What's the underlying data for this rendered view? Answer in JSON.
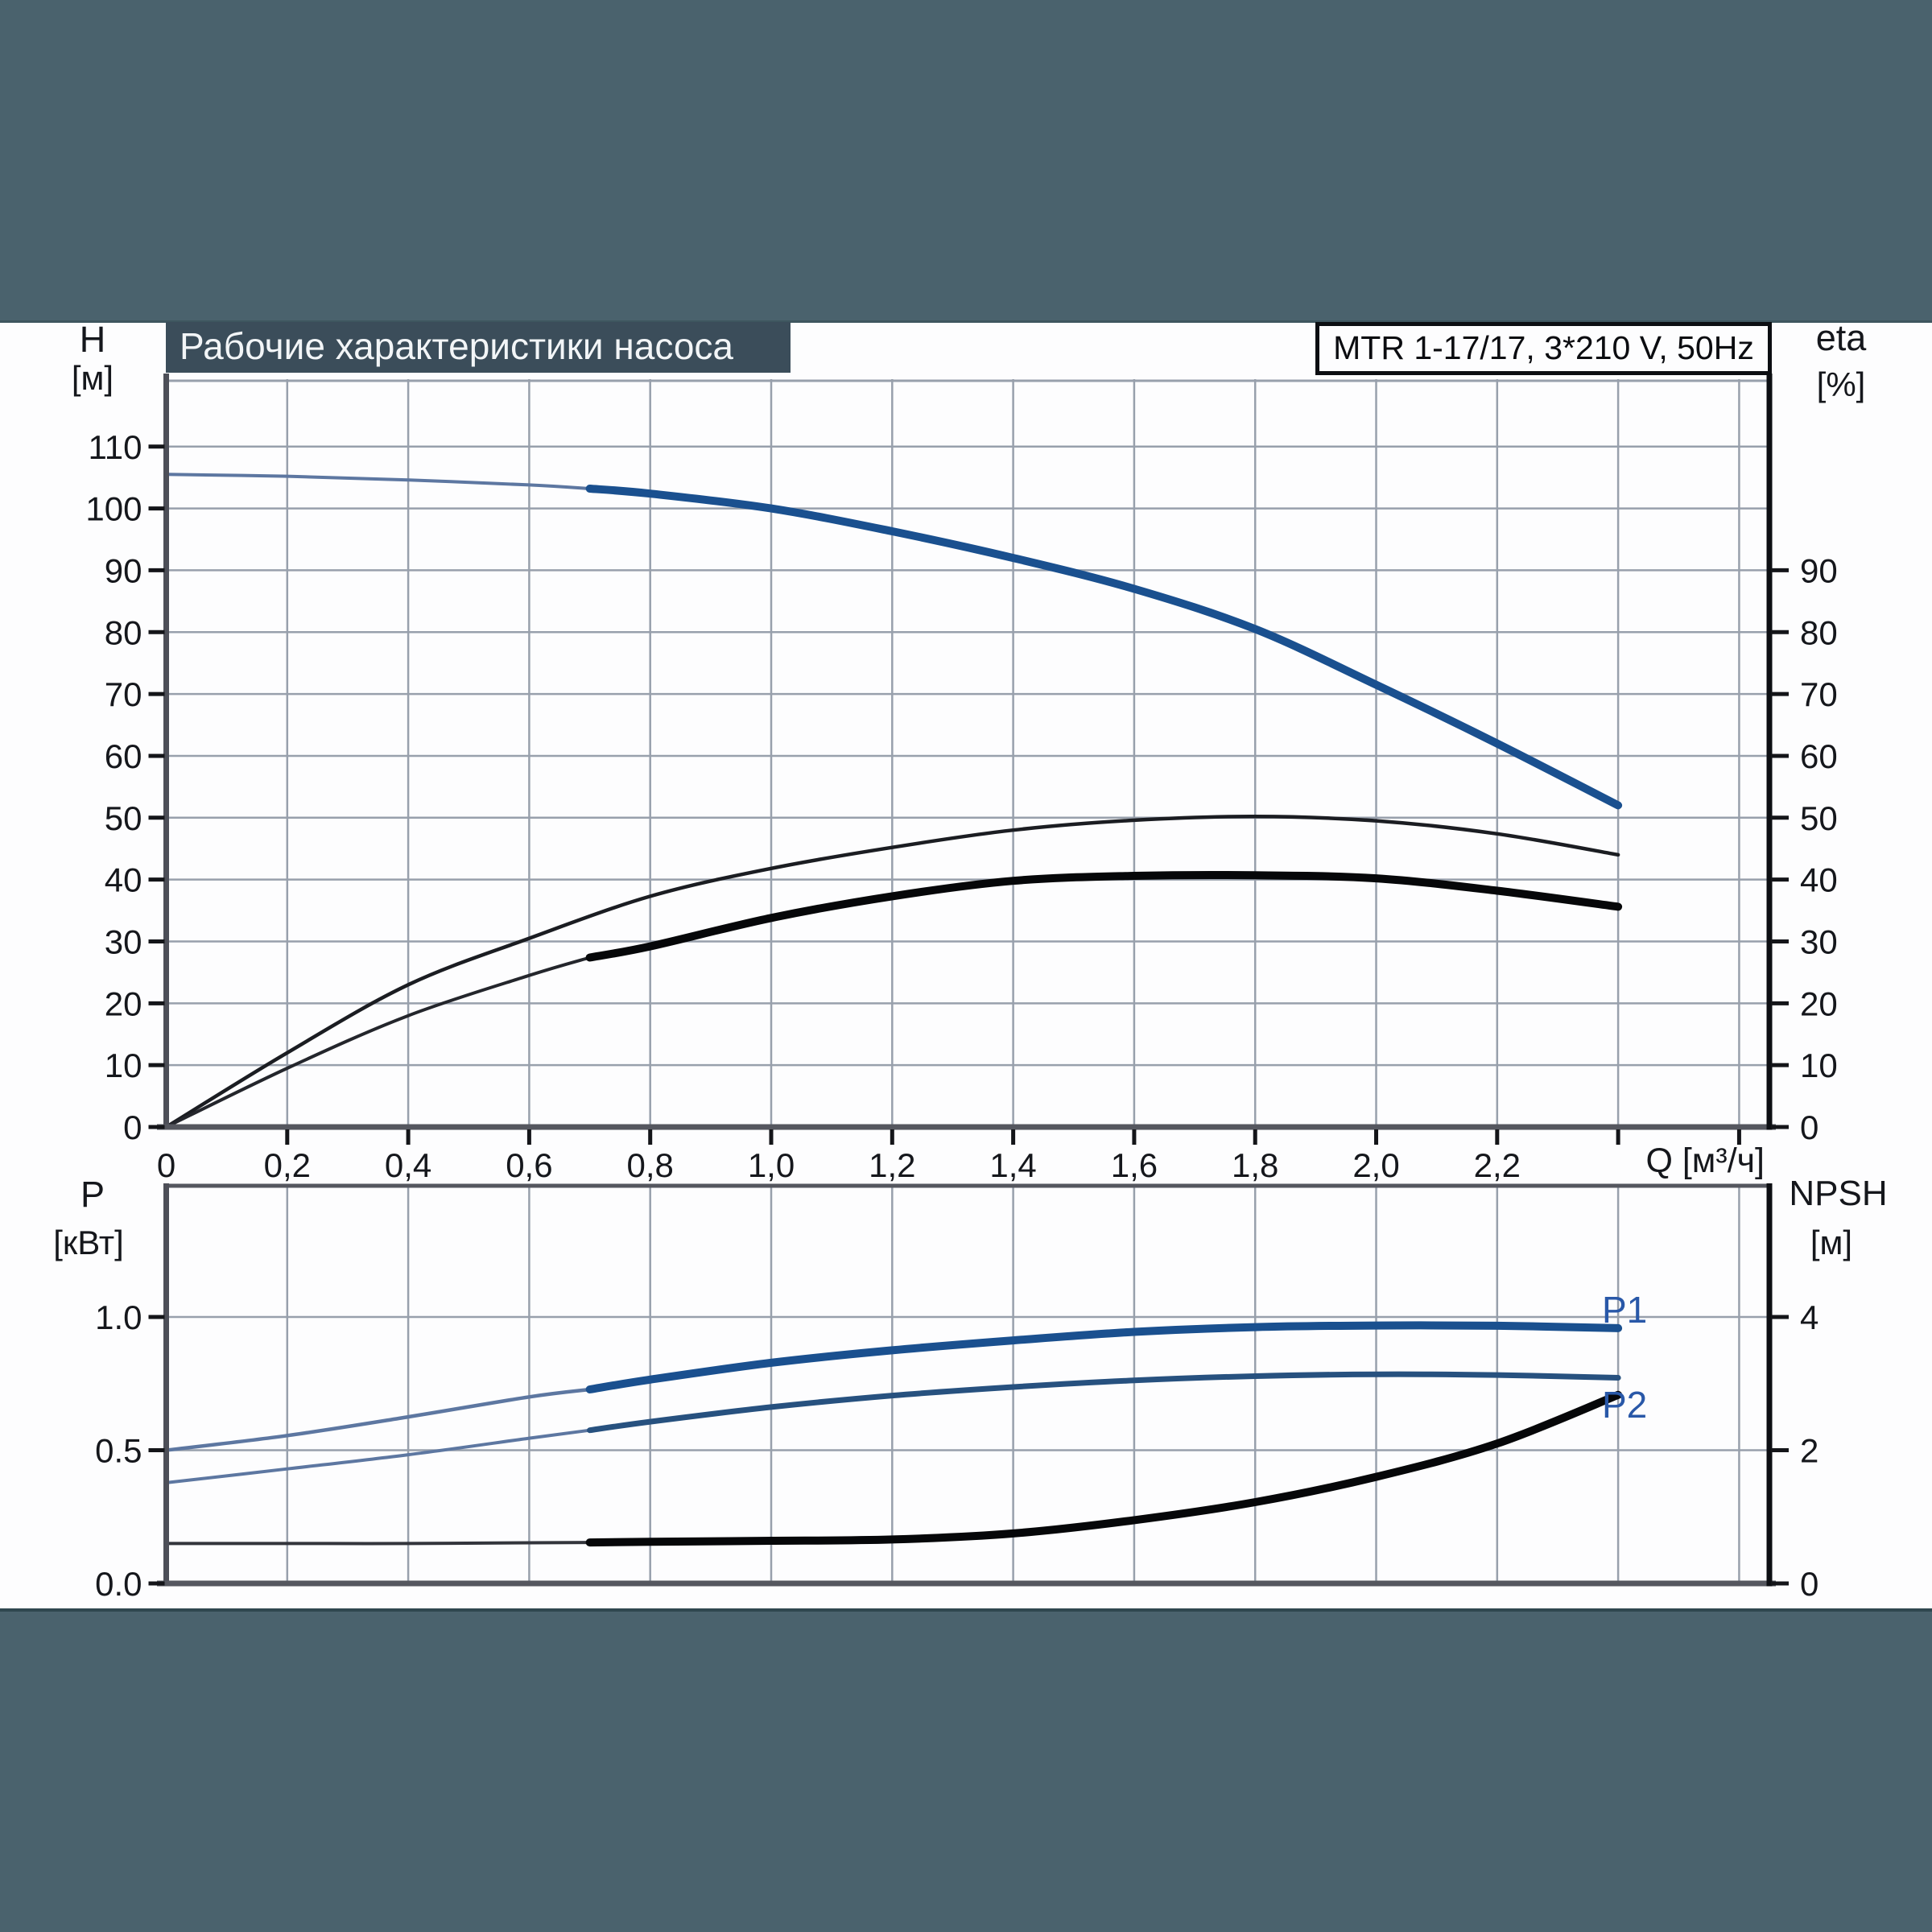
{
  "page": {
    "background_color": "#4a626d",
    "panel_color": "#fdfdfe",
    "title_bar_color": "#3b4d5a",
    "grid_color": "#98a0ac",
    "axis_gray_color": "#55575f",
    "frame_black_color": "#0d0f13",
    "accent_blue_bold": "#1a508f",
    "accent_blue_thin": "#5d77a1",
    "label_blue": "#2958a8"
  },
  "chart_data": [
    {
      "id": "pump-performance",
      "type": "line",
      "title": "Рабочие характеристики насоса",
      "legend_box": "MTR 1-17/17, 3*210 V, 50Hz",
      "grid": true,
      "x": {
        "label": "Q [м³/ч]",
        "min": 0,
        "max": 2.65,
        "grid_step": 0.2,
        "tick_values": [
          0,
          0.2,
          0.4,
          0.6,
          0.8,
          1.0,
          1.2,
          1.4,
          1.6,
          1.8,
          2.0,
          2.2
        ],
        "tick_labels": [
          "0",
          "0,2",
          "0,4",
          "0,6",
          "0,8",
          "1,0",
          "1,2",
          "1,4",
          "1,6",
          "1,8",
          "2,0",
          "2,2"
        ],
        "unlabeled_tick_values": [
          2.4,
          2.6
        ]
      },
      "y_left": {
        "label": "H",
        "unit": "[м]",
        "min": 0,
        "max": 120.9,
        "tick_values": [
          0,
          10,
          20,
          30,
          40,
          50,
          60,
          70,
          80,
          90,
          100,
          110
        ],
        "tick_labels": [
          "0",
          "10",
          "20",
          "30",
          "40",
          "50",
          "60",
          "70",
          "80",
          "90",
          "100",
          "110"
        ]
      },
      "y_right": {
        "label": "eta",
        "unit": "[%]",
        "min": 0,
        "max": 120.9,
        "tick_values": [
          0,
          10,
          20,
          30,
          40,
          50,
          60,
          70,
          80,
          90
        ],
        "tick_labels": [
          "0",
          "10",
          "20",
          "30",
          "40",
          "50",
          "60",
          "70",
          "80",
          "90"
        ]
      },
      "series": [
        {
          "name": "H",
          "axis": "left",
          "bold_from": 0.7,
          "color_bold": "#1a508f",
          "color_thin": "#5d77a1",
          "points": [
            [
              0,
              105.5
            ],
            [
              0.2,
              105.2
            ],
            [
              0.4,
              104.6
            ],
            [
              0.6,
              103.8
            ],
            [
              0.7,
              103.2
            ],
            [
              0.8,
              102.4
            ],
            [
              1.0,
              100.0
            ],
            [
              1.2,
              96.3
            ],
            [
              1.4,
              92.0
            ],
            [
              1.6,
              87.0
            ],
            [
              1.8,
              80.5
            ],
            [
              2.0,
              71.5
            ],
            [
              2.2,
              62.0
            ],
            [
              2.4,
              52.0
            ]
          ]
        },
        {
          "name": "eta-upper",
          "axis": "right",
          "bold_from": null,
          "color_bold": "#1b1d22",
          "color_thin": "#1b1d22",
          "points": [
            [
              0,
              0
            ],
            [
              0.2,
              12
            ],
            [
              0.4,
              23
            ],
            [
              0.6,
              30.5
            ],
            [
              0.8,
              37.3
            ],
            [
              1.0,
              41.8
            ],
            [
              1.2,
              45.2
            ],
            [
              1.4,
              48.0
            ],
            [
              1.6,
              49.6
            ],
            [
              1.8,
              50.2
            ],
            [
              2.0,
              49.5
            ],
            [
              2.2,
              47.4
            ],
            [
              2.4,
              44.0
            ]
          ]
        },
        {
          "name": "eta-lower",
          "axis": "right",
          "bold_from": 0.7,
          "color_bold": "#060709",
          "color_thin": "#24262c",
          "points": [
            [
              0,
              0
            ],
            [
              0.2,
              9.5
            ],
            [
              0.4,
              18
            ],
            [
              0.6,
              24.5
            ],
            [
              0.7,
              27.4
            ],
            [
              0.8,
              29.2
            ],
            [
              1.0,
              33.8
            ],
            [
              1.2,
              37.3
            ],
            [
              1.4,
              39.8
            ],
            [
              1.6,
              40.6
            ],
            [
              1.8,
              40.7
            ],
            [
              2.0,
              40.2
            ],
            [
              2.2,
              38.2
            ],
            [
              2.4,
              35.6
            ]
          ]
        }
      ]
    },
    {
      "id": "power-npsh",
      "type": "line",
      "grid": true,
      "x": {
        "min": 0,
        "max": 2.65,
        "grid_step": 0.2
      },
      "y_left": {
        "label": "P",
        "unit": "[кВт]",
        "min": 0,
        "max": 1.4924,
        "tick_values": [
          0,
          0.5,
          1.0
        ],
        "tick_labels": [
          "0.0",
          "0.5",
          "1.0"
        ],
        "grid_values": [
          0.5,
          1.0
        ]
      },
      "y_right": {
        "label": "NPSH",
        "unit": "[м]",
        "min": 0,
        "max": 5.97,
        "tick_values": [
          0,
          2,
          4
        ],
        "tick_labels": [
          "0",
          "2",
          "4"
        ]
      },
      "series": [
        {
          "name": "P1",
          "axis": "left",
          "label": "P1",
          "bold_from": 0.7,
          "color_bold": "#1a508f",
          "color_thin": "#5d77a1",
          "points": [
            [
              0,
              0.5
            ],
            [
              0.2,
              0.555
            ],
            [
              0.4,
              0.625
            ],
            [
              0.6,
              0.7
            ],
            [
              0.7,
              0.728
            ],
            [
              0.8,
              0.765
            ],
            [
              1.0,
              0.828
            ],
            [
              1.2,
              0.875
            ],
            [
              1.4,
              0.912
            ],
            [
              1.6,
              0.944
            ],
            [
              1.8,
              0.962
            ],
            [
              2.0,
              0.968
            ],
            [
              2.2,
              0.967
            ],
            [
              2.4,
              0.958
            ]
          ]
        },
        {
          "name": "P2",
          "axis": "left",
          "label": "P2",
          "bold_from": 0.7,
          "color_bold": "#27517f",
          "color_thin": "#5d77a1",
          "points": [
            [
              0,
              0.378
            ],
            [
              0.2,
              0.43
            ],
            [
              0.4,
              0.483
            ],
            [
              0.6,
              0.545
            ],
            [
              0.7,
              0.575
            ],
            [
              0.8,
              0.607
            ],
            [
              1.0,
              0.662
            ],
            [
              1.2,
              0.705
            ],
            [
              1.4,
              0.737
            ],
            [
              1.6,
              0.762
            ],
            [
              1.8,
              0.778
            ],
            [
              2.0,
              0.785
            ],
            [
              2.2,
              0.782
            ],
            [
              2.4,
              0.772
            ]
          ]
        },
        {
          "name": "NPSH",
          "axis": "right",
          "bold_from": 0.7,
          "color_bold": "#060709",
          "color_thin": "#33353c",
          "points": [
            [
              0,
              0.6
            ],
            [
              0.2,
              0.6
            ],
            [
              0.4,
              0.6
            ],
            [
              0.6,
              0.61
            ],
            [
              0.7,
              0.615
            ],
            [
              0.8,
              0.625
            ],
            [
              1.0,
              0.64
            ],
            [
              1.2,
              0.66
            ],
            [
              1.4,
              0.75
            ],
            [
              1.6,
              0.95
            ],
            [
              1.8,
              1.22
            ],
            [
              2.0,
              1.6
            ],
            [
              2.2,
              2.1
            ],
            [
              2.4,
              2.83
            ]
          ]
        }
      ]
    }
  ]
}
